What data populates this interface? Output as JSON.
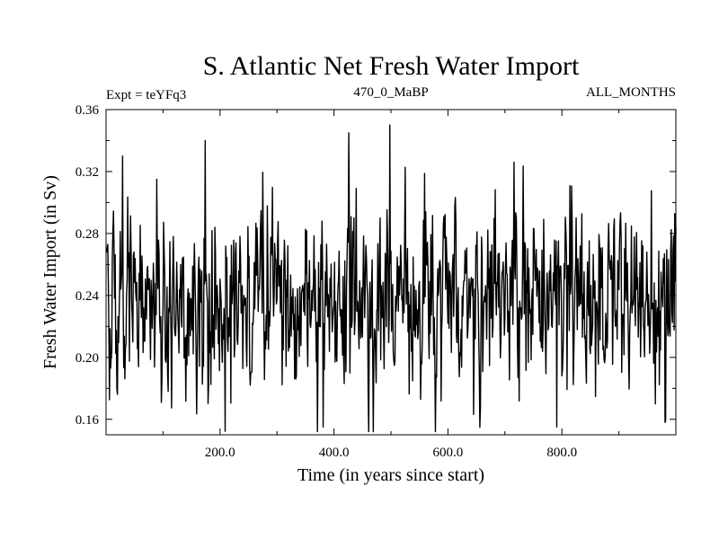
{
  "chart_data": {
    "type": "line",
    "title": "S. Atlantic Net Fresh Water Import",
    "subtitle_left": "Expt = teYFq3",
    "subtitle_center": "470_0_MaBP",
    "subtitle_right": "ALL_MONTHS",
    "xlabel": "Time (in years since start)",
    "ylabel": "Fresh Water Import (in Sv)",
    "xlim": [
      0,
      1000
    ],
    "ylim": [
      0.15,
      0.36
    ],
    "xticks": [
      200,
      400,
      600,
      800
    ],
    "xtick_labels": [
      "200.0",
      "400.0",
      "600.0",
      "800.0"
    ],
    "yticks": [
      0.16,
      0.2,
      0.24,
      0.28,
      0.32,
      0.36
    ],
    "ytick_labels": [
      "0.16",
      "0.20",
      "0.24",
      "0.28",
      "0.32",
      "0.36"
    ],
    "series": [
      {
        "name": "Net Fresh Water Import",
        "n_points": 1000,
        "mean": 0.236,
        "std": 0.03,
        "min": 0.152,
        "max": 0.35,
        "generator_seed": 470,
        "peaks": [
          {
            "x": 28,
            "y": 0.33
          },
          {
            "x": 88,
            "y": 0.315
          },
          {
            "x": 173,
            "y": 0.34
          },
          {
            "x": 425,
            "y": 0.345
          },
          {
            "x": 497,
            "y": 0.35
          },
          {
            "x": 715,
            "y": 0.326
          },
          {
            "x": 380,
            "y": 0.155
          },
          {
            "x": 577,
            "y": 0.152
          },
          {
            "x": 790,
            "y": 0.155
          },
          {
            "x": 980,
            "y": 0.158
          }
        ]
      }
    ]
  }
}
